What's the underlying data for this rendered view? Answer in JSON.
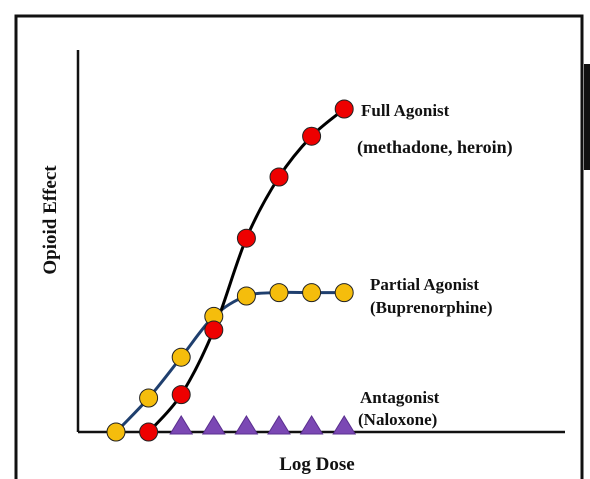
{
  "chart_data": {
    "type": "line",
    "xlabel": "Log Dose",
    "ylabel": "Opioid Effect",
    "grid": false,
    "x": [
      1,
      2,
      3,
      4,
      5,
      6,
      7,
      8
    ],
    "series": [
      {
        "name": "Full Agonist",
        "sublabel": "(methadone, heroin)",
        "marker": "circle",
        "marker_color": "#ee0000",
        "line_color": "#000000",
        "x": [
          2,
          3,
          4,
          5,
          6,
          7,
          8
        ],
        "values": [
          0,
          11,
          30,
          57,
          75,
          87,
          95
        ]
      },
      {
        "name": "Partial Agonist",
        "sublabel": "(Buprenorphine)",
        "marker": "circle",
        "marker_color": "#f5bd0c",
        "line_color": "#1f3f6e",
        "x": [
          1,
          2,
          3,
          4,
          5,
          6,
          7,
          8
        ],
        "values": [
          0,
          10,
          22,
          34,
          40,
          41,
          41,
          41
        ]
      },
      {
        "name": "Antagonist",
        "sublabel": "(Naloxone)",
        "marker": "triangle",
        "marker_color": "#7b48b4",
        "line_color": "#000000",
        "x": [
          3,
          4,
          5,
          6,
          7,
          8
        ],
        "values": [
          0,
          0,
          0,
          0,
          0,
          0
        ]
      }
    ]
  }
}
